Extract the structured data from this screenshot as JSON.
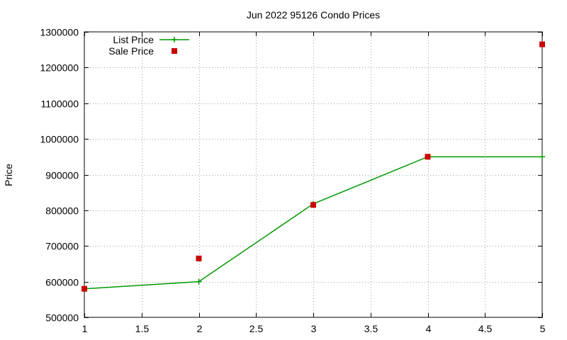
{
  "chart_data": {
    "type": "line",
    "title": "Jun 2022 95126 Condo Prices",
    "xlabel": "",
    "ylabel": "Price",
    "xlim": [
      1,
      5
    ],
    "ylim": [
      500000,
      1300000
    ],
    "xticks": [
      1,
      1.5,
      2,
      2.5,
      3,
      3.5,
      4,
      4.5,
      5
    ],
    "yticks": [
      500000,
      600000,
      700000,
      800000,
      900000,
      1000000,
      1100000,
      1200000,
      1300000
    ],
    "grid": true,
    "legend_position": "top-left",
    "series": [
      {
        "name": "List Price",
        "style": "line+cross",
        "color": "#009900",
        "x": [
          1,
          2,
          3,
          4,
          5
        ],
        "y": [
          580000,
          600000,
          818000,
          950000,
          950000
        ]
      },
      {
        "name": "Sale Price",
        "style": "points-square",
        "color": "#cc0000",
        "x": [
          1,
          2,
          3,
          4,
          5
        ],
        "y": [
          580000,
          665000,
          815000,
          950000,
          1265000
        ]
      }
    ]
  }
}
